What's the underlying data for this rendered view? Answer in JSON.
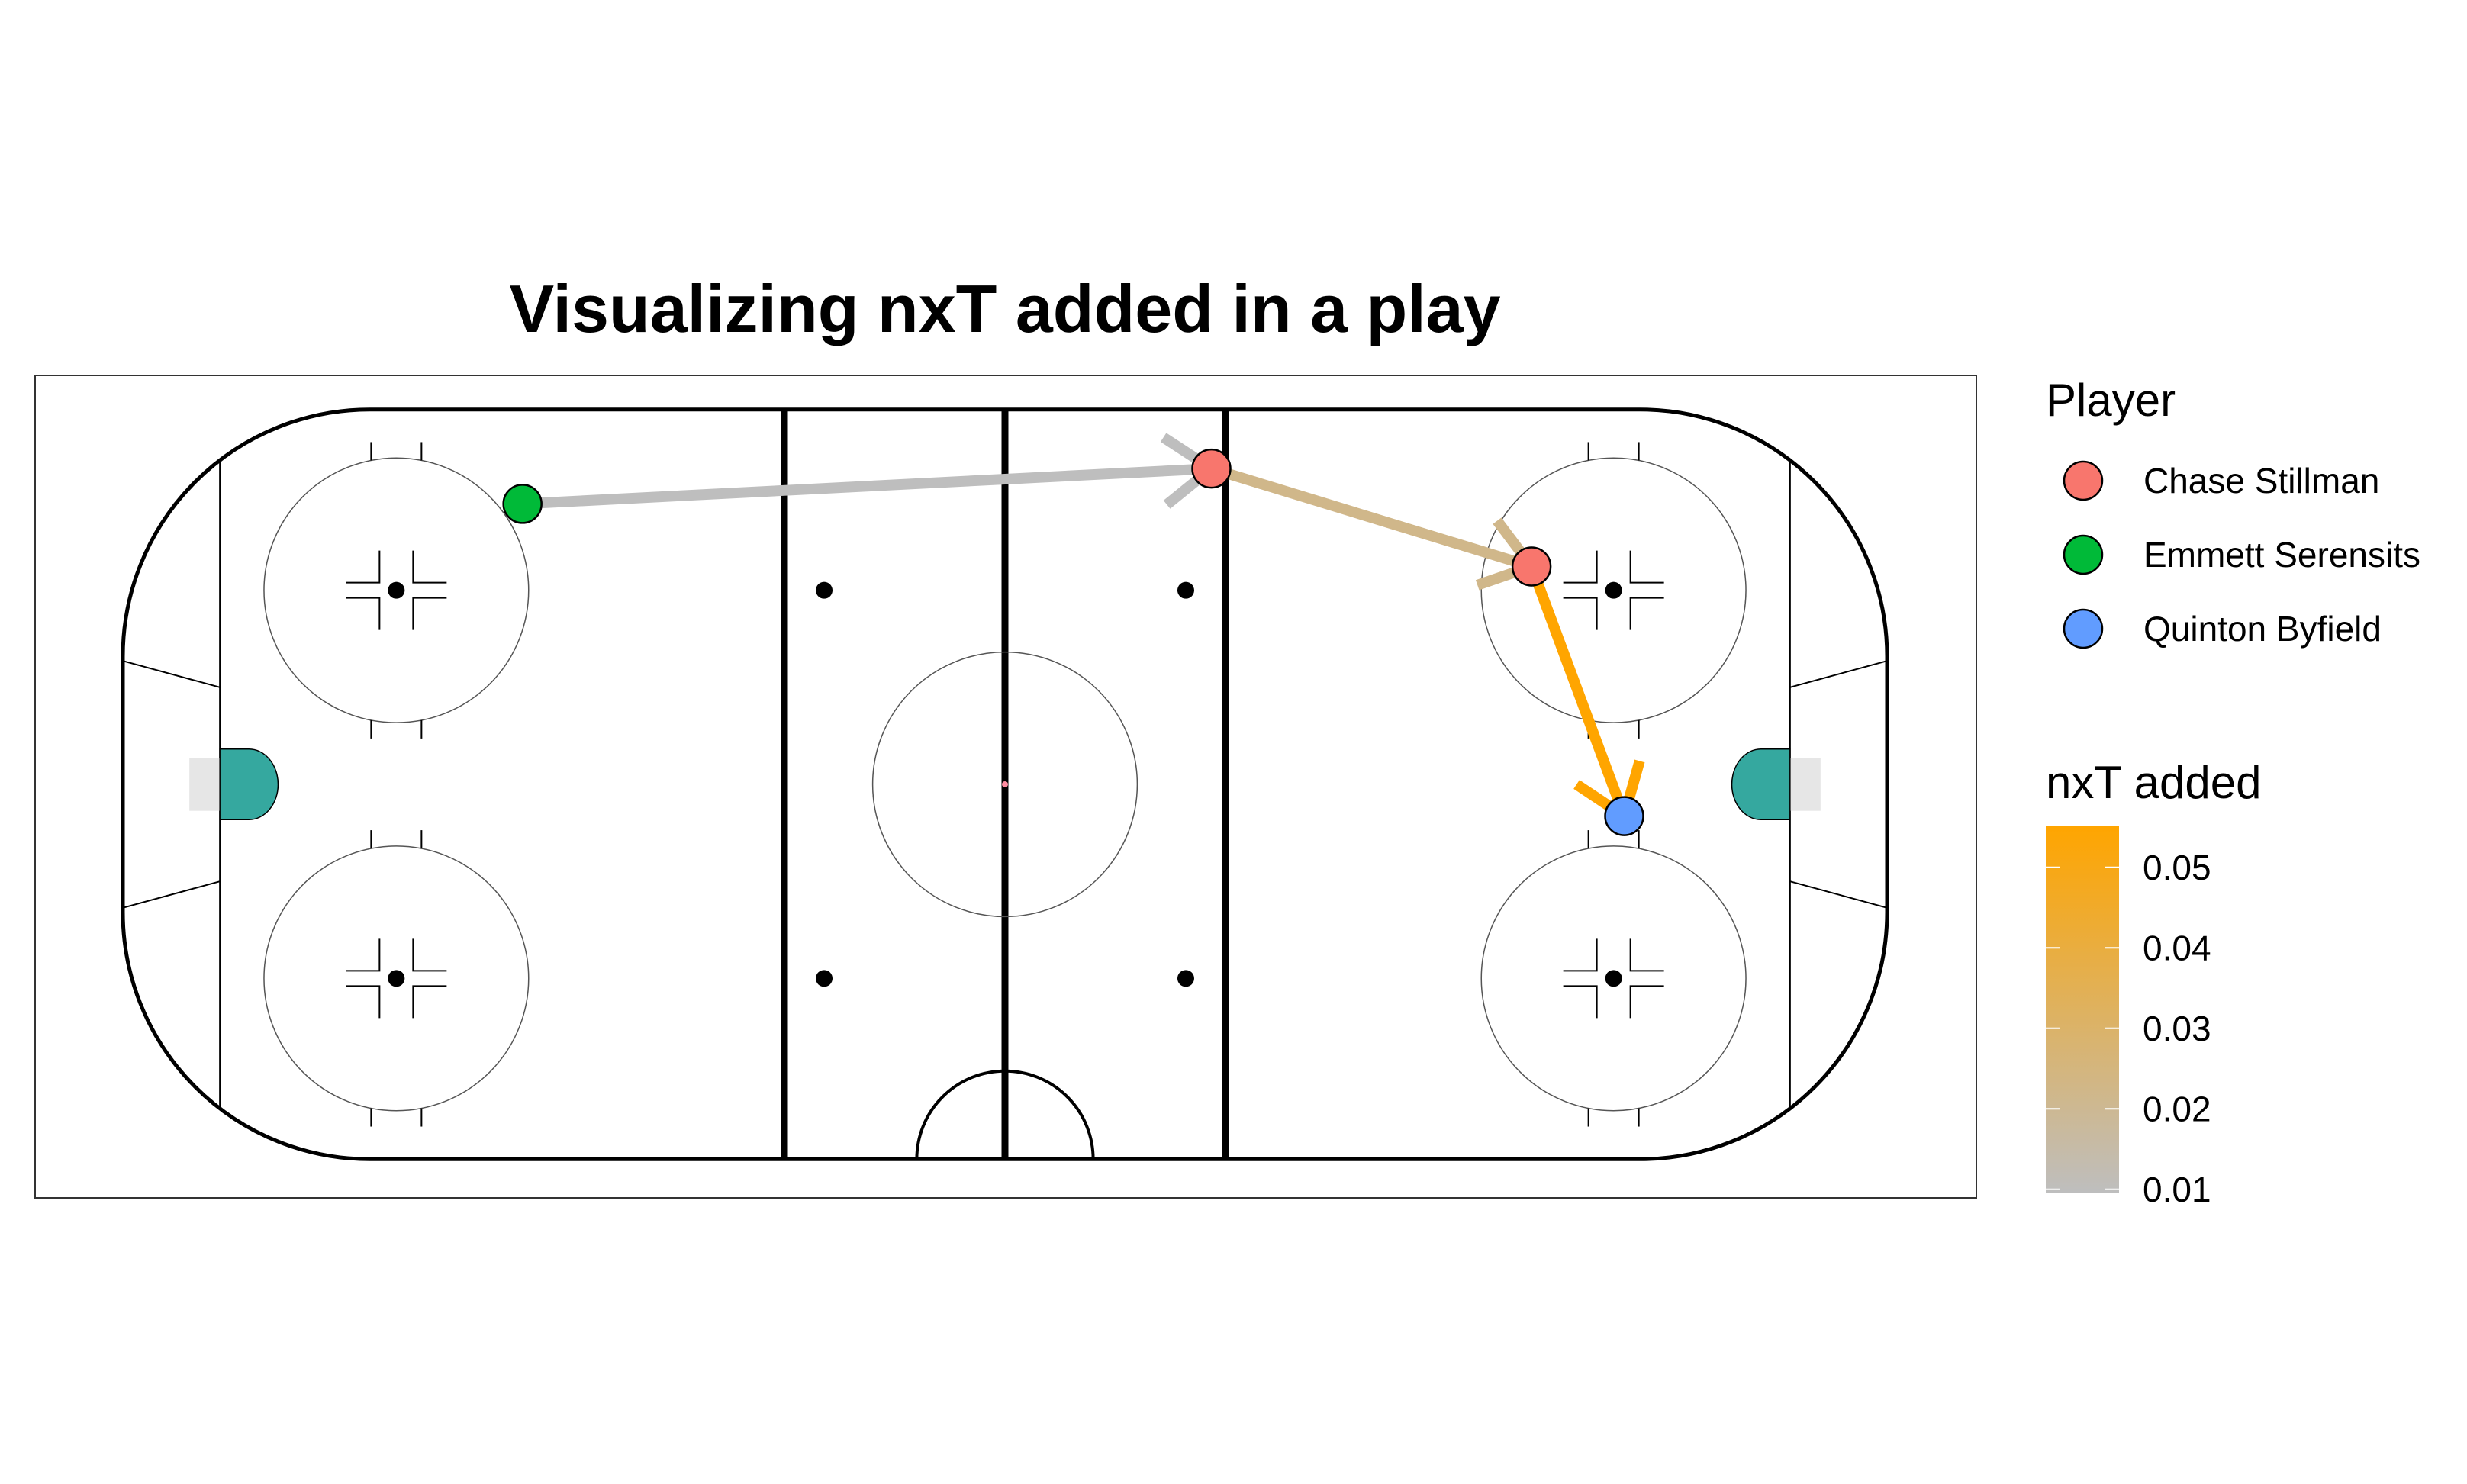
{
  "chart_data": {
    "type": "scatter",
    "title": "Visualizing nxT added in a play",
    "xlabel": "",
    "ylabel": "",
    "xlim": [
      -100,
      100
    ],
    "ylim": [
      -42.5,
      42.5
    ],
    "grid": false,
    "legend_placement": "right",
    "player_legend": {
      "title": "Player",
      "entries": [
        {
          "name": "Chase Stillman",
          "color": "#F8766D"
        },
        {
          "name": "Emmett Serensits",
          "color": "#00BA38"
        },
        {
          "name": "Quinton Byfield",
          "color": "#619CFF"
        }
      ]
    },
    "nxt_legend": {
      "title": "nxT added",
      "ticks": [
        "0.05",
        "0.04",
        "0.03",
        "0.02",
        "0.01"
      ],
      "tick_values": [
        0.05,
        0.04,
        0.03,
        0.02,
        0.01
      ],
      "range": [
        0.0096,
        0.0551
      ],
      "low_color": "#BEBEBE",
      "high_color": "#FFA500"
    },
    "points": [
      {
        "player": "Emmett Serensits",
        "x": -54.7,
        "y": 31.8
      },
      {
        "player": "Chase Stillman",
        "x": 23.4,
        "y": 35.8
      },
      {
        "player": "Chase Stillman",
        "x": 59.7,
        "y": 24.7
      },
      {
        "player": "Quinton Byfield",
        "x": 70.2,
        "y": -3.6
      }
    ],
    "passes": [
      {
        "x": -54.7,
        "y": 31.8,
        "xend": 23.4,
        "yend": 35.8,
        "nxt": 0.0096
      },
      {
        "x": 23.4,
        "y": 35.8,
        "xend": 59.7,
        "yend": 24.7,
        "nxt": 0.022
      },
      {
        "x": 59.7,
        "y": 24.7,
        "xend": 70.2,
        "yend": -3.6,
        "nxt": 0.055
      }
    ]
  },
  "colors": {
    "center_dot": "#FF8DA1",
    "goal_fill": "#35A89F",
    "net_fill": "#E6E6E6"
  }
}
